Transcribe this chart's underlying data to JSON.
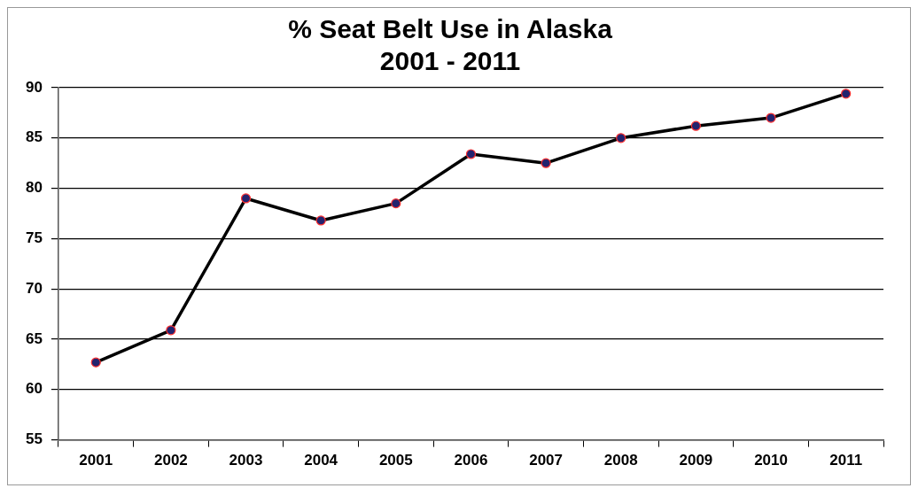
{
  "chart_data": {
    "type": "line",
    "title": "% Seat Belt Use in Alaska\n2001 - 2011",
    "categories": [
      "2001",
      "2002",
      "2003",
      "2004",
      "2005",
      "2006",
      "2007",
      "2008",
      "2009",
      "2010",
      "2011"
    ],
    "series": [
      {
        "color": "#000000",
        "values": [
          62.7,
          65.9,
          79.0,
          76.8,
          78.5,
          83.4,
          82.5,
          85.0,
          86.2,
          87.0,
          89.4
        ]
      }
    ],
    "ylim": [
      55,
      90
    ],
    "yticks": [
      55,
      60,
      65,
      70,
      75,
      80,
      85,
      90
    ],
    "grid": "y",
    "legend": false,
    "marker": "circle",
    "line_style": "solid"
  }
}
